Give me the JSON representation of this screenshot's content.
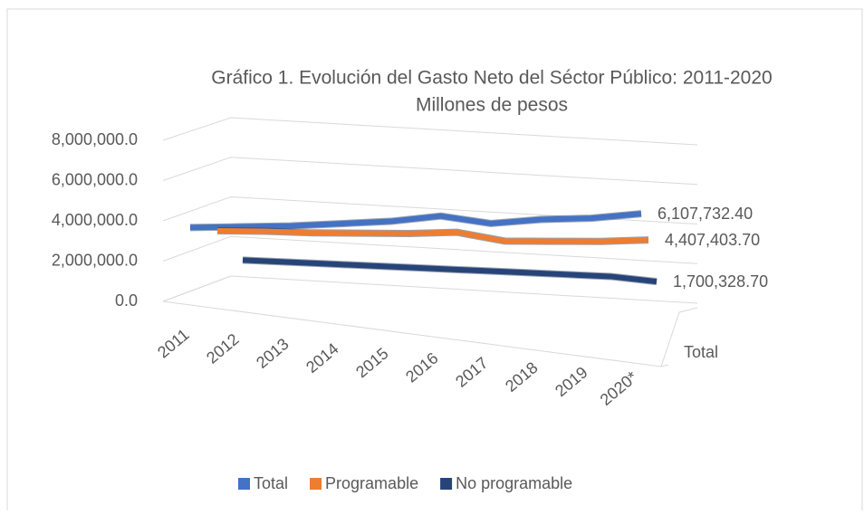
{
  "chart_data": {
    "type": "line3d",
    "title": "Gráfico 1. Evolución del Gasto Neto del Séctor Público: 2011-2020",
    "subtitle": "Millones de pesos",
    "categories": [
      "2011",
      "2012",
      "2013",
      "2014",
      "2015",
      "2016",
      "2017",
      "2018",
      "2019",
      "2020*"
    ],
    "depth_categories": [
      "Total"
    ],
    "series": [
      {
        "name": "Total",
        "color": "#4472c4",
        "values": [
          4900000,
          5000000,
          5100000,
          5300000,
          5500000,
          5900000,
          5400000,
          5700000,
          5800000,
          6107732.4
        ],
        "value_labels": [
          null,
          null,
          null,
          null,
          null,
          null,
          null,
          null,
          null,
          "6,107,732.40"
        ]
      },
      {
        "name": "Programable",
        "color": "#ed7d31",
        "values": [
          4000000,
          4100000,
          4100000,
          4200000,
          4300000,
          4500000,
          4000000,
          4100000,
          4200000,
          4407403.7
        ],
        "value_labels": [
          null,
          null,
          null,
          null,
          null,
          null,
          null,
          null,
          null,
          "4,407,403.70"
        ]
      },
      {
        "name": "No programable",
        "color": "#264478",
        "values": [
          1900000,
          1900000,
          1900000,
          1900000,
          1900000,
          1900000,
          1900000,
          1900000,
          1900000,
          1700328.7
        ],
        "value_labels": [
          null,
          null,
          null,
          null,
          null,
          null,
          null,
          null,
          null,
          "1,700,328.70"
        ]
      }
    ],
    "ylim": [
      0,
      8000000
    ],
    "yticks": [
      {
        "value": 0,
        "label": "0.0"
      },
      {
        "value": 2000000,
        "label": "2,000,000.0"
      },
      {
        "value": 4000000,
        "label": "4,000,000.0"
      },
      {
        "value": 6000000,
        "label": "6,000,000.0"
      },
      {
        "value": 8000000,
        "label": "8,000,000.0"
      }
    ],
    "grid": true,
    "legend": "bottom"
  }
}
